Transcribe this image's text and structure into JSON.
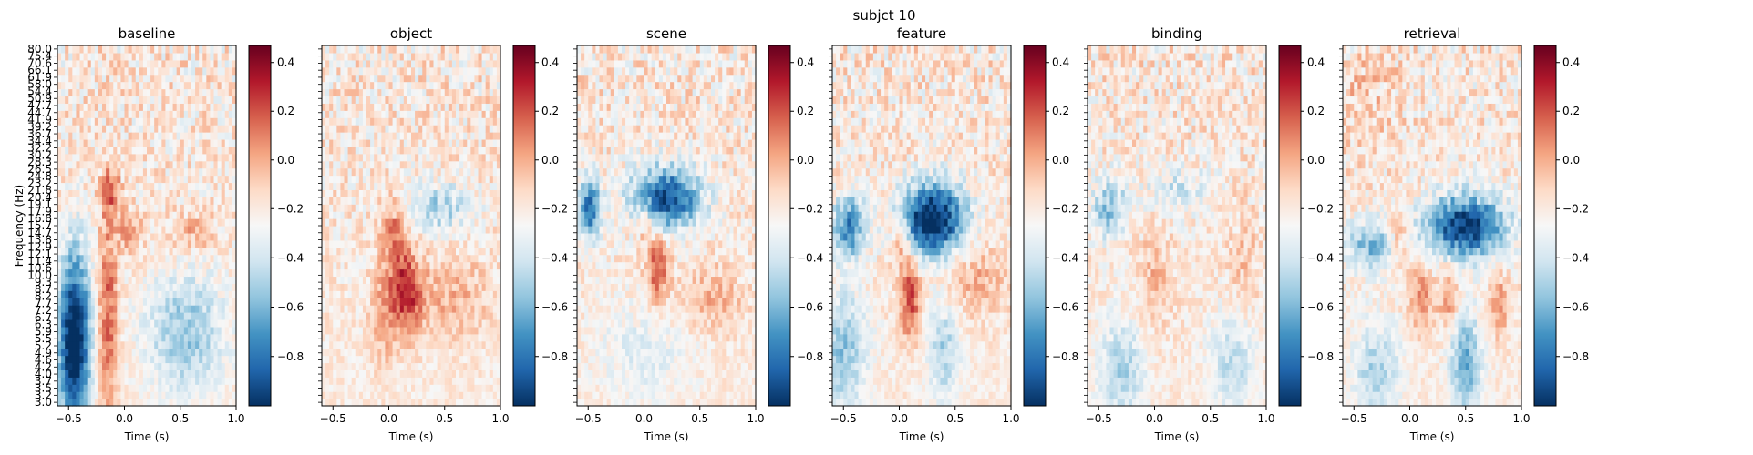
{
  "figure": {
    "suptitle": "subjct 10"
  },
  "chart_data": {
    "type": "heatmap",
    "title": "subjct 10",
    "ylabel": "Frequency (Hz)",
    "xlabel": "Time (s)",
    "colormap": "RdBu_r",
    "xlim": [
      -0.6,
      1.0
    ],
    "x_ticks": [
      "−0.5",
      "0.0",
      "0.5",
      "1.0"
    ],
    "x_tick_values": [
      -0.5,
      0.0,
      0.5,
      1.0
    ],
    "y_ticks": [
      "3.0",
      "3.2",
      "3.5",
      "3.7",
      "4.0",
      "4.2",
      "4.6",
      "4.9",
      "5.2",
      "5.5",
      "5.9",
      "6.3",
      "6.7",
      "7.2",
      "7.7",
      "8.2",
      "8.7",
      "9.3",
      "10.0",
      "10.6",
      "11.4",
      "12.1",
      "12.9",
      "13.8",
      "14.7",
      "15.7",
      "16.8",
      "17.9",
      "19.1",
      "20.4",
      "21.8",
      "23.2",
      "24.8",
      "26.5",
      "28.3",
      "30.2",
      "32.2",
      "34.4",
      "36.7",
      "39.2",
      "41.9",
      "44.7",
      "47.7",
      "50.9",
      "54.4",
      "58.0",
      "61.9",
      "66.1",
      "70.6",
      "75.4",
      "80.0"
    ],
    "ylim": [
      3.0,
      80.0
    ],
    "colorbar": {
      "range": [
        -1.0,
        0.47
      ],
      "ticks": [
        0.4,
        0.2,
        0.0,
        -0.2,
        -0.4,
        -0.6,
        -0.8
      ],
      "tick_labels": [
        "0.4",
        "0.2",
        "0.0",
        "−0.2",
        "−0.4",
        "−0.6",
        "−0.8"
      ]
    },
    "panels": [
      {
        "title": "baseline",
        "blobs": [
          {
            "t": -0.45,
            "f": 0.18,
            "st": 0.1,
            "sf": 0.17,
            "a": -0.95
          },
          {
            "t": -0.15,
            "f": 0.25,
            "st": 0.06,
            "sf": 0.2,
            "a": 0.38
          },
          {
            "t": -0.12,
            "f": 0.6,
            "st": 0.06,
            "sf": 0.05,
            "a": 0.32
          },
          {
            "t": 0.05,
            "f": 0.48,
            "st": 0.07,
            "sf": 0.04,
            "a": 0.28
          },
          {
            "t": 0.6,
            "f": 0.48,
            "st": 0.15,
            "sf": 0.04,
            "a": 0.18
          },
          {
            "t": 0.55,
            "f": 0.2,
            "st": 0.25,
            "sf": 0.12,
            "a": -0.35
          }
        ]
      },
      {
        "title": "object",
        "blobs": [
          {
            "t": 0.15,
            "f": 0.32,
            "st": 0.1,
            "sf": 0.08,
            "a": 0.48
          },
          {
            "t": 0.05,
            "f": 0.48,
            "st": 0.08,
            "sf": 0.06,
            "a": 0.3
          },
          {
            "t": -0.05,
            "f": 0.25,
            "st": 0.08,
            "sf": 0.1,
            "a": 0.2
          },
          {
            "t": 0.45,
            "f": 0.55,
            "st": 0.2,
            "sf": 0.05,
            "a": -0.3
          },
          {
            "t": 0.55,
            "f": 0.3,
            "st": 0.25,
            "sf": 0.08,
            "a": 0.18
          }
        ]
      },
      {
        "title": "scene",
        "blobs": [
          {
            "t": 0.2,
            "f": 0.58,
            "st": 0.22,
            "sf": 0.06,
            "a": -0.75
          },
          {
            "t": -0.5,
            "f": 0.55,
            "st": 0.08,
            "sf": 0.06,
            "a": -0.6
          },
          {
            "t": 0.12,
            "f": 0.38,
            "st": 0.07,
            "sf": 0.07,
            "a": 0.4
          },
          {
            "t": 0.0,
            "f": 0.52,
            "st": 0.06,
            "sf": 0.05,
            "a": 0.22
          },
          {
            "t": 0.6,
            "f": 0.3,
            "st": 0.2,
            "sf": 0.06,
            "a": 0.2
          },
          {
            "t": 0.0,
            "f": 0.15,
            "st": 0.3,
            "sf": 0.1,
            "a": -0.15
          }
        ]
      },
      {
        "title": "feature",
        "blobs": [
          {
            "t": 0.3,
            "f": 0.52,
            "st": 0.2,
            "sf": 0.07,
            "a": -0.9
          },
          {
            "t": -0.45,
            "f": 0.5,
            "st": 0.1,
            "sf": 0.06,
            "a": -0.55
          },
          {
            "t": 0.1,
            "f": 0.3,
            "st": 0.06,
            "sf": 0.08,
            "a": 0.45
          },
          {
            "t": 0.0,
            "f": 0.45,
            "st": 0.06,
            "sf": 0.05,
            "a": 0.3
          },
          {
            "t": -0.5,
            "f": 0.15,
            "st": 0.15,
            "sf": 0.12,
            "a": -0.35
          },
          {
            "t": 0.4,
            "f": 0.15,
            "st": 0.1,
            "sf": 0.1,
            "a": -0.3
          },
          {
            "t": 0.7,
            "f": 0.35,
            "st": 0.2,
            "sf": 0.07,
            "a": 0.18
          }
        ]
      },
      {
        "title": "binding",
        "blobs": [
          {
            "t": -0.4,
            "f": 0.55,
            "st": 0.12,
            "sf": 0.06,
            "a": -0.35
          },
          {
            "t": 0.2,
            "f": 0.6,
            "st": 0.2,
            "sf": 0.05,
            "a": -0.2
          },
          {
            "t": 0.0,
            "f": 0.35,
            "st": 0.1,
            "sf": 0.1,
            "a": 0.15
          },
          {
            "t": 0.8,
            "f": 0.4,
            "st": 0.1,
            "sf": 0.1,
            "a": 0.12
          },
          {
            "t": -0.3,
            "f": 0.1,
            "st": 0.15,
            "sf": 0.1,
            "a": -0.3
          },
          {
            "t": 0.7,
            "f": 0.12,
            "st": 0.15,
            "sf": 0.1,
            "a": -0.25
          }
        ]
      },
      {
        "title": "retrieval",
        "blobs": [
          {
            "t": 0.5,
            "f": 0.5,
            "st": 0.25,
            "sf": 0.06,
            "a": -0.8
          },
          {
            "t": -0.35,
            "f": 0.45,
            "st": 0.15,
            "sf": 0.05,
            "a": -0.4
          },
          {
            "t": 0.1,
            "f": 0.3,
            "st": 0.08,
            "sf": 0.06,
            "a": 0.3
          },
          {
            "t": 0.35,
            "f": 0.3,
            "st": 0.06,
            "sf": 0.06,
            "a": 0.28
          },
          {
            "t": 0.8,
            "f": 0.28,
            "st": 0.06,
            "sf": 0.06,
            "a": 0.25
          },
          {
            "t": -0.1,
            "f": 0.48,
            "st": 0.06,
            "sf": 0.05,
            "a": 0.22
          },
          {
            "t": 0.5,
            "f": 0.12,
            "st": 0.1,
            "sf": 0.1,
            "a": -0.45
          },
          {
            "t": -0.3,
            "f": 0.1,
            "st": 0.15,
            "sf": 0.1,
            "a": -0.3
          },
          {
            "t": -0.4,
            "f": 0.85,
            "st": 0.2,
            "sf": 0.1,
            "a": 0.1
          }
        ]
      }
    ]
  }
}
